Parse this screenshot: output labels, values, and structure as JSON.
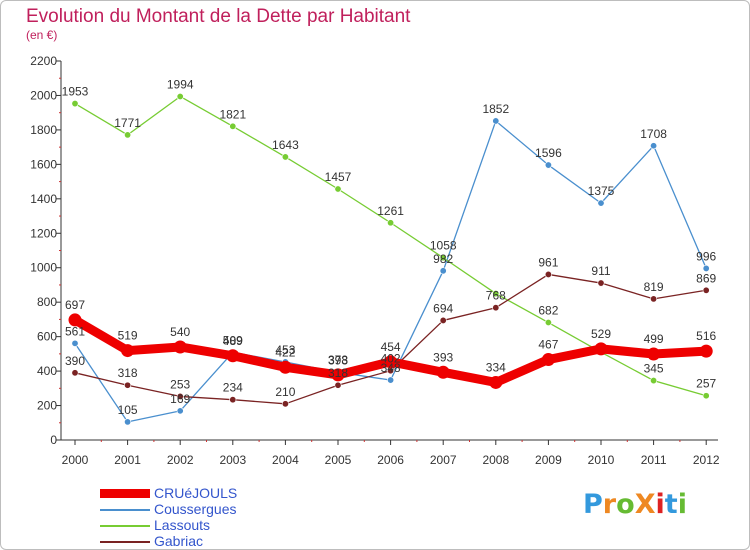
{
  "title": "Evolution du Montant de la Dette par Habitant",
  "subtitle": "(en €)",
  "logo": {
    "text": "ProXiti",
    "letter_colors": [
      "#3399dd",
      "#ee8822",
      "#66bb33",
      "#ee8822",
      "#dd2222",
      "#3399dd",
      "#66bb33"
    ]
  },
  "chart_data": {
    "type": "line",
    "x": [
      "2000",
      "2001",
      "2002",
      "2003",
      "2004",
      "2005",
      "2006",
      "2007",
      "2008",
      "2009",
      "2010",
      "2011",
      "2012"
    ],
    "ylim": [
      0,
      2200
    ],
    "yticks": [
      0,
      200,
      400,
      600,
      800,
      1000,
      1200,
      1400,
      1600,
      1800,
      2000,
      2200
    ],
    "grid": false,
    "legend_position": "bottom-left",
    "series": [
      {
        "name": "CRUéJOULS",
        "color": "#ee0000",
        "bold": true,
        "values": [
          697,
          519,
          540,
          489,
          422,
          378,
          454,
          393,
          334,
          467,
          529,
          499,
          516
        ],
        "labels": [
          "697",
          "519",
          "540",
          "489",
          "422",
          "378",
          "454",
          "393",
          "334",
          "467",
          "529",
          "499",
          "516"
        ]
      },
      {
        "name": "Coussergues",
        "color": "#4a8fce",
        "bold": false,
        "values": [
          561,
          105,
          169,
          509,
          453,
          393,
          348,
          982,
          1852,
          1596,
          1375,
          1708,
          996
        ],
        "labels": [
          "561",
          "105",
          "169",
          "509",
          "453",
          "393",
          "348",
          "982",
          "1852",
          "1596",
          "1375",
          "1708",
          "996"
        ]
      },
      {
        "name": "Lassouts",
        "color": "#77cc33",
        "bold": false,
        "values": [
          1953,
          1771,
          1994,
          1821,
          1643,
          1457,
          1261,
          1058,
          850,
          682,
          510,
          345,
          257
        ],
        "labels": [
          "1953",
          "1771",
          "1994",
          "1821",
          "1643",
          "1457",
          "1261",
          "1058",
          "",
          "682",
          "",
          "345",
          "257"
        ]
      },
      {
        "name": "Gabriac",
        "color": "#7a2323",
        "bold": false,
        "values": [
          390,
          318,
          253,
          234,
          210,
          318,
          402,
          694,
          768,
          961,
          911,
          819,
          869
        ],
        "labels": [
          "390",
          "318",
          "253",
          "234",
          "210",
          "318",
          "402",
          "694",
          "768",
          "961",
          "911",
          "819",
          "869"
        ]
      }
    ]
  }
}
